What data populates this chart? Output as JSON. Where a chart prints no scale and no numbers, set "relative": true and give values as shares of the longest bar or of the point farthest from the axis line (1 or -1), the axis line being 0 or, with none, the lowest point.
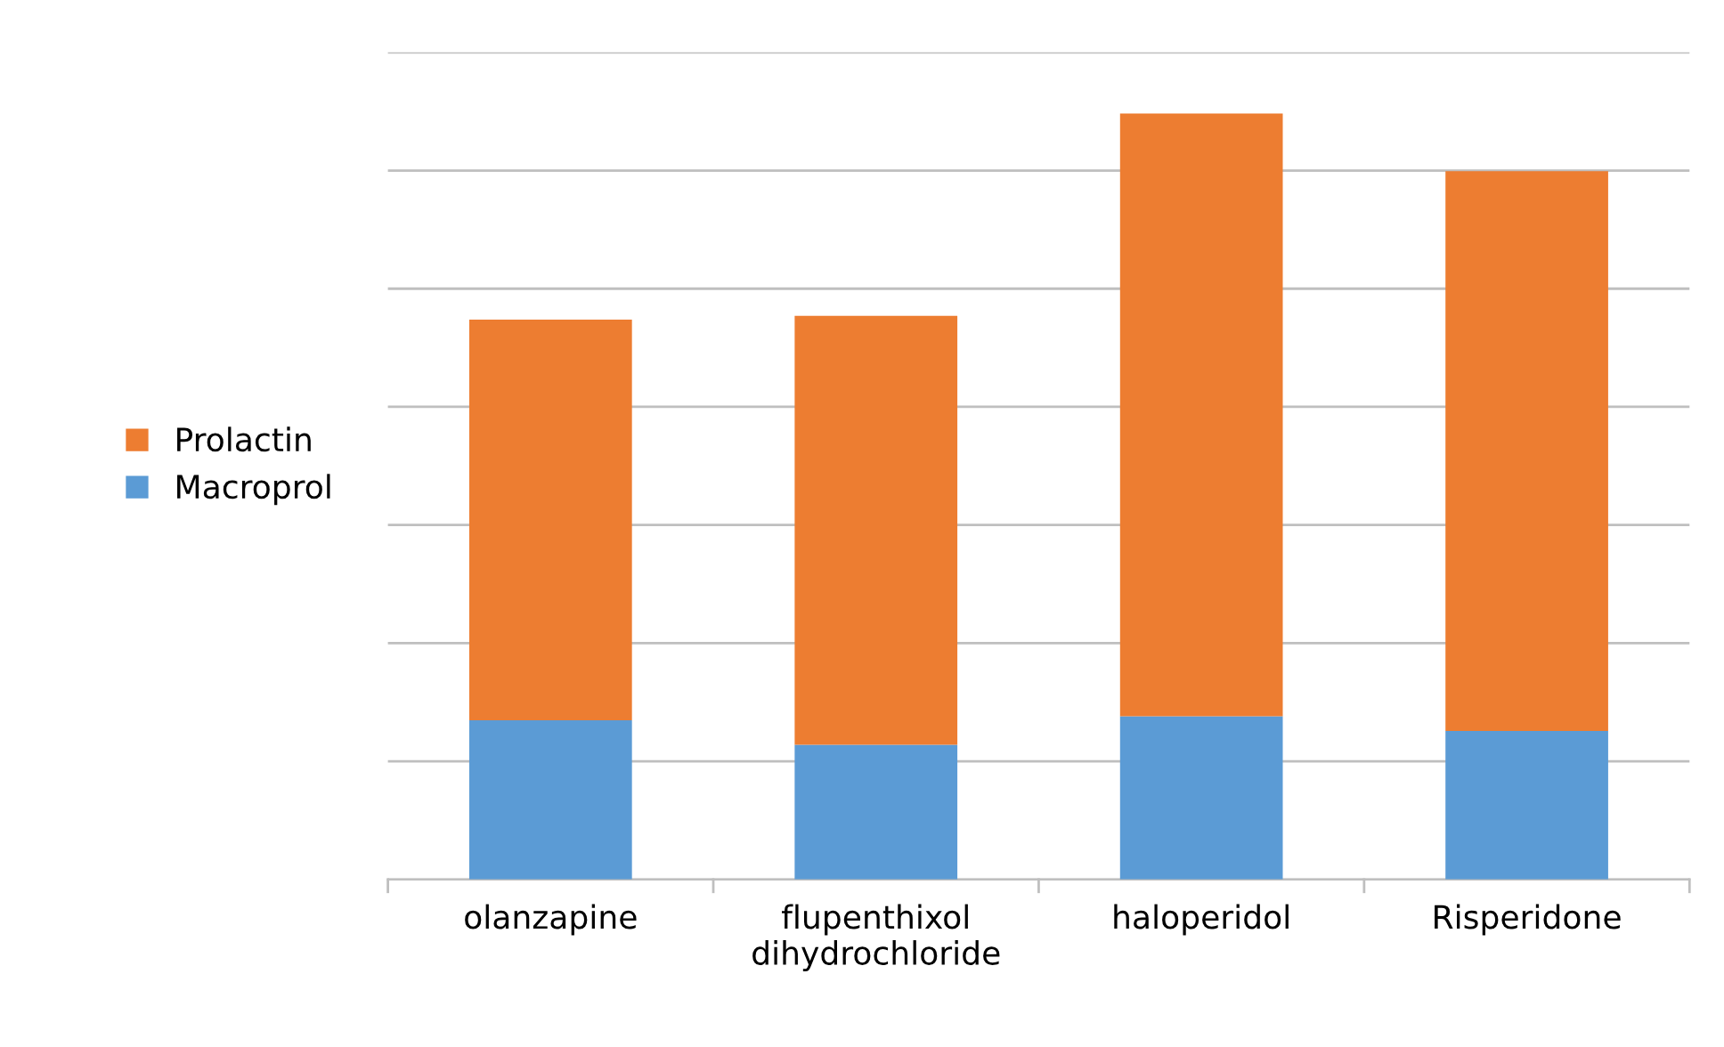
{
  "chart_data": {
    "type": "bar",
    "stacked": true,
    "relative": true,
    "grid": "y",
    "legend": "left",
    "categories": [
      "olanzapine",
      "flupenthixol\ndihydrochloride",
      "haloperidol",
      "Risperidone"
    ],
    "series": [
      {
        "name": "Macroprol",
        "color": "#5b9bd5",
        "values": [
          0.208,
          0.176,
          0.213,
          0.194
        ]
      },
      {
        "name": "Prolactin",
        "color": "#ed7d31",
        "values": [
          0.523,
          0.56,
          0.787,
          0.731
        ]
      }
    ]
  }
}
